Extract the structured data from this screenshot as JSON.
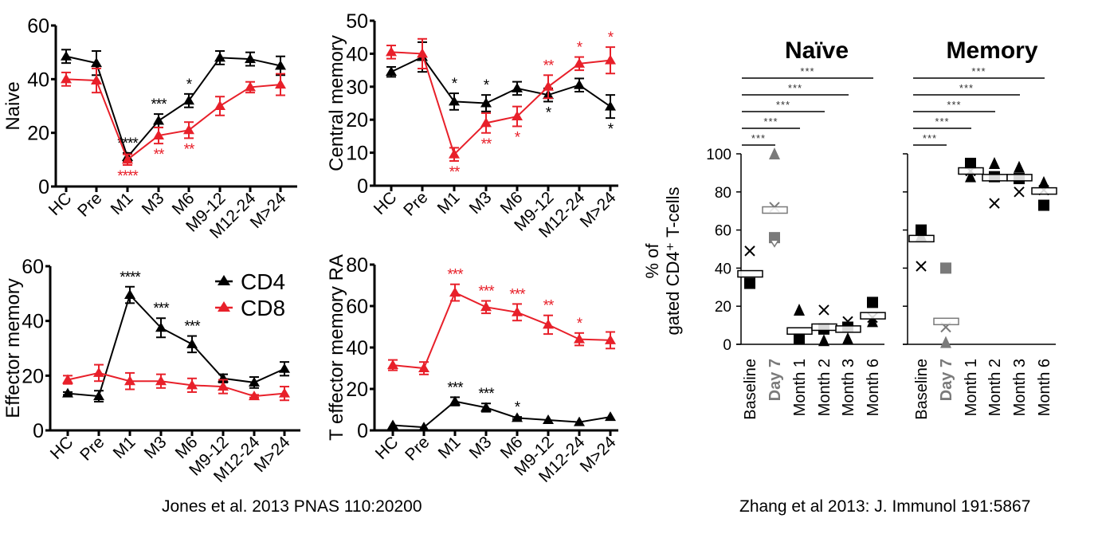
{
  "colors": {
    "cd4": "#000000",
    "cd8": "#e8202a",
    "day7": "#7a7a7a"
  },
  "captions": {
    "left": "Jones et al. 2013 PNAS 110:20200",
    "right": "Zhang et al 2013: J. Immunol 191:5867"
  },
  "chart_data": [
    {
      "type": "line",
      "id": "naive",
      "ylabel": "Naive",
      "ylim": [
        0,
        60
      ],
      "yticks": [
        0,
        20,
        40,
        60
      ],
      "categories": [
        "HC",
        "Pre",
        "M1",
        "M3",
        "M6",
        "M9-12",
        "M12-24",
        "M>24"
      ],
      "series": [
        {
          "name": "CD4",
          "values": [
            48.5,
            46,
            11,
            24.5,
            32,
            48,
            47.5,
            45
          ],
          "errors": [
            2.5,
            4.5,
            1.5,
            2.5,
            2.5,
            2.5,
            2.5,
            3.5
          ],
          "sig": [
            "",
            "",
            "****",
            "***",
            "*",
            "",
            "",
            ""
          ],
          "sig_pos": [
            "",
            "",
            "above",
            "above",
            "above",
            "",
            "",
            ""
          ]
        },
        {
          "name": "CD8",
          "values": [
            40,
            39.5,
            10,
            19,
            21,
            30,
            37,
            38
          ],
          "errors": [
            2.5,
            4.5,
            2,
            3,
            3,
            3.5,
            2,
            4
          ],
          "sig": [
            "",
            "",
            "****",
            "**",
            "**",
            "",
            "",
            ""
          ],
          "sig_pos": [
            "",
            "",
            "below",
            "below",
            "below",
            "",
            "",
            ""
          ]
        }
      ]
    },
    {
      "type": "line",
      "id": "central",
      "ylabel": "Central memory",
      "ylim": [
        0,
        50
      ],
      "yticks": [
        0,
        10,
        20,
        30,
        40,
        50
      ],
      "categories": [
        "HC",
        "Pre",
        "M1",
        "M3",
        "M6",
        "M9-12",
        "M12-24",
        "M>24"
      ],
      "series": [
        {
          "name": "CD4",
          "values": [
            34.5,
            39,
            25.5,
            25,
            29.5,
            27.5,
            30.5,
            24
          ],
          "errors": [
            1.5,
            4.5,
            2.5,
            2.5,
            2,
            2,
            2,
            3.5
          ],
          "sig": [
            "",
            "",
            "*",
            "*",
            "",
            "*",
            "",
            "*"
          ],
          "sig_pos": [
            "",
            "",
            "above",
            "above",
            "",
            "below",
            "",
            "below"
          ]
        },
        {
          "name": "CD8",
          "values": [
            40.5,
            40,
            9.5,
            19,
            21,
            30,
            37,
            38
          ],
          "errors": [
            2,
            4.5,
            2,
            3,
            3,
            3.5,
            2,
            4
          ],
          "sig": [
            "",
            "",
            "**",
            "**",
            "*",
            "**",
            "*",
            "*"
          ],
          "sig_pos": [
            "",
            "",
            "below",
            "below",
            "below",
            "above",
            "above",
            "above"
          ]
        }
      ]
    },
    {
      "type": "line",
      "id": "effector",
      "ylabel": "Effector memory",
      "ylim": [
        0,
        60
      ],
      "yticks": [
        0,
        20,
        40,
        60
      ],
      "categories": [
        "HC",
        "Pre",
        "M1",
        "M3",
        "M6",
        "M9-12",
        "M12-24",
        "M>24"
      ],
      "legend": {
        "position": "top-right",
        "entries": [
          "CD4",
          "CD8"
        ]
      },
      "series": [
        {
          "name": "CD4",
          "values": [
            13.5,
            12.5,
            49.5,
            37.5,
            31.5,
            19,
            17.5,
            22.5
          ],
          "errors": [
            0.5,
            2,
            3,
            3.5,
            3,
            1.5,
            2,
            2.5
          ],
          "sig": [
            "",
            "",
            "****",
            "***",
            "***",
            "",
            "",
            ""
          ],
          "sig_pos": [
            "",
            "",
            "above",
            "above",
            "above",
            "",
            "",
            ""
          ]
        },
        {
          "name": "CD8",
          "values": [
            18.5,
            21,
            18,
            18,
            16.5,
            16,
            12.5,
            13.5
          ],
          "errors": [
            1.5,
            3,
            3,
            2.5,
            2.5,
            2.5,
            0.5,
            2.5
          ],
          "sig": [
            "",
            "",
            "",
            "",
            "",
            "",
            "",
            ""
          ],
          "sig_pos": [
            "",
            "",
            "",
            "",
            "",
            "",
            "",
            ""
          ]
        }
      ]
    },
    {
      "type": "line",
      "id": "temra",
      "ylabel": "T effector memory RA",
      "ylim": [
        0,
        80
      ],
      "yticks": [
        0,
        20,
        40,
        60,
        80
      ],
      "categories": [
        "HC",
        "Pre",
        "M1",
        "M3",
        "M6",
        "M9-12",
        "M12-24",
        "M>24"
      ],
      "series": [
        {
          "name": "CD4",
          "values": [
            2.5,
            1.5,
            14,
            11,
            6,
            5,
            4,
            6.5
          ],
          "errors": [
            0.3,
            0.3,
            2,
            2,
            0.5,
            0.3,
            0.3,
            0.3
          ],
          "sig": [
            "",
            "",
            "***",
            "***",
            "*",
            "",
            "",
            ""
          ],
          "sig_pos": [
            "",
            "",
            "above",
            "above",
            "above",
            "",
            "",
            ""
          ]
        },
        {
          "name": "CD8",
          "values": [
            31.5,
            30,
            66.5,
            59.5,
            57,
            51,
            44,
            43.5
          ],
          "errors": [
            2.5,
            3,
            4,
            3,
            4,
            4.5,
            3,
            4
          ],
          "sig": [
            "",
            "",
            "***",
            "***",
            "***",
            "**",
            "*",
            ""
          ],
          "sig_pos": [
            "",
            "",
            "above",
            "above",
            "above",
            "above",
            "above",
            ""
          ]
        }
      ]
    },
    {
      "type": "scatter",
      "id": "zhang-naive",
      "title": "Naïve",
      "ylabel": "% of gated CD4⁺ T-cells",
      "ylim": [
        0,
        100
      ],
      "yticks": [
        0,
        20,
        40,
        60,
        80,
        100
      ],
      "categories": [
        "Baseline",
        "Day 7",
        "Month 1",
        "Month 2",
        "Month 3",
        "Month 6"
      ],
      "highlight_category": "Day 7",
      "means": [
        37,
        70.5,
        7,
        9,
        8,
        15
      ],
      "points": [
        [
          {
            "m": "x",
            "v": 49
          },
          {
            "m": "square",
            "v": 32
          }
        ],
        [
          {
            "m": "triangle",
            "v": 100
          },
          {
            "m": "x",
            "v": 72
          },
          {
            "m": "square",
            "v": 56
          },
          {
            "m": "tri-down",
            "v": 53
          }
        ],
        [
          {
            "m": "triangle",
            "v": 18
          },
          {
            "m": "square",
            "v": 3
          }
        ],
        [
          {
            "m": "x",
            "v": 18
          },
          {
            "m": "square",
            "v": 8
          },
          {
            "m": "triangle",
            "v": 2
          }
        ],
        [
          {
            "m": "x",
            "v": 12
          },
          {
            "m": "square",
            "v": 9
          },
          {
            "m": "triangle",
            "v": 3
          }
        ],
        [
          {
            "m": "square",
            "v": 22
          },
          {
            "m": "x",
            "v": 14
          },
          {
            "m": "triangle",
            "v": 12
          }
        ]
      ],
      "brackets": [
        {
          "from": "Baseline",
          "to": "Day 7",
          "label": "***"
        },
        {
          "from": "Baseline",
          "to": "Month 1",
          "label": "***"
        },
        {
          "from": "Baseline",
          "to": "Month 2",
          "label": "***"
        },
        {
          "from": "Baseline",
          "to": "Month 3",
          "label": "***"
        },
        {
          "from": "Baseline",
          "to": "Month 6",
          "label": "***"
        }
      ]
    },
    {
      "type": "scatter",
      "id": "zhang-memory",
      "title": "Memory",
      "ylim": [
        0,
        100
      ],
      "yticks": [
        0,
        20,
        40,
        60,
        80,
        100
      ],
      "categories": [
        "Baseline",
        "Day 7",
        "Month 1",
        "Month 2",
        "Month 3",
        "Month 6"
      ],
      "highlight_category": "Day 7",
      "means": [
        55.5,
        12,
        91,
        87.5,
        87.5,
        80.5
      ],
      "points": [
        [
          {
            "m": "square",
            "v": 60
          },
          {
            "m": "triangle",
            "v": 57
          },
          {
            "m": "x",
            "v": 41
          }
        ],
        [
          {
            "m": "square",
            "v": 40
          },
          {
            "m": "x",
            "v": 9
          },
          {
            "m": "triangle",
            "v": 1
          }
        ],
        [
          {
            "m": "square",
            "v": 95
          },
          {
            "m": "x",
            "v": 91
          },
          {
            "m": "triangle",
            "v": 88
          }
        ],
        [
          {
            "m": "triangle",
            "v": 95
          },
          {
            "m": "square",
            "v": 88
          },
          {
            "m": "x",
            "v": 74
          }
        ],
        [
          {
            "m": "triangle",
            "v": 93
          },
          {
            "m": "square",
            "v": 87
          },
          {
            "m": "x",
            "v": 80
          }
        ],
        [
          {
            "m": "triangle",
            "v": 85
          },
          {
            "m": "x",
            "v": 81
          },
          {
            "m": "square",
            "v": 73
          }
        ]
      ],
      "brackets": [
        {
          "from": "Baseline",
          "to": "Day 7",
          "label": "***"
        },
        {
          "from": "Baseline",
          "to": "Month 1",
          "label": "***"
        },
        {
          "from": "Baseline",
          "to": "Month 2",
          "label": "***"
        },
        {
          "from": "Baseline",
          "to": "Month 3",
          "label": "***"
        },
        {
          "from": "Baseline",
          "to": "Month 6",
          "label": "***"
        }
      ]
    }
  ]
}
